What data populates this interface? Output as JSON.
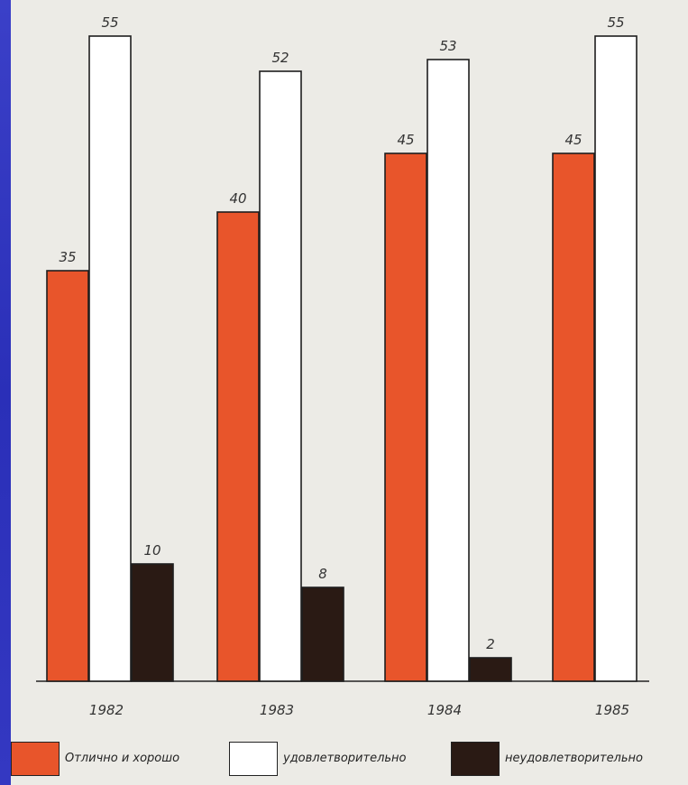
{
  "chart_data": {
    "type": "bar",
    "title": "",
    "xlabel": "",
    "ylabel": "",
    "ylim": [
      0,
      55
    ],
    "categories": [
      "1982",
      "1983",
      "1984",
      "1985"
    ],
    "series": [
      {
        "name": "Отлично и хорошо",
        "color": "#e8552b",
        "values": [
          35,
          40,
          45,
          45
        ]
      },
      {
        "name": "удовлетворительно",
        "color": "#ffffff",
        "values": [
          55,
          52,
          53,
          55
        ]
      },
      {
        "name": "неудовлетворительно",
        "color": "#2a1a14",
        "values": [
          10,
          8,
          2,
          null
        ]
      }
    ],
    "value_labels": [
      "35",
      "55",
      "10",
      "40",
      "52",
      "8",
      "45",
      "53",
      "2",
      "45",
      "55"
    ],
    "grid": false,
    "legend_position": "bottom"
  },
  "legend": {
    "items": [
      {
        "label": "Отлично и хорошо",
        "color": "#e8552b"
      },
      {
        "label": "удовлетворительно",
        "color": "#ffffff"
      },
      {
        "label": "неудовлетворительно",
        "color": "#2a1a14"
      }
    ]
  }
}
